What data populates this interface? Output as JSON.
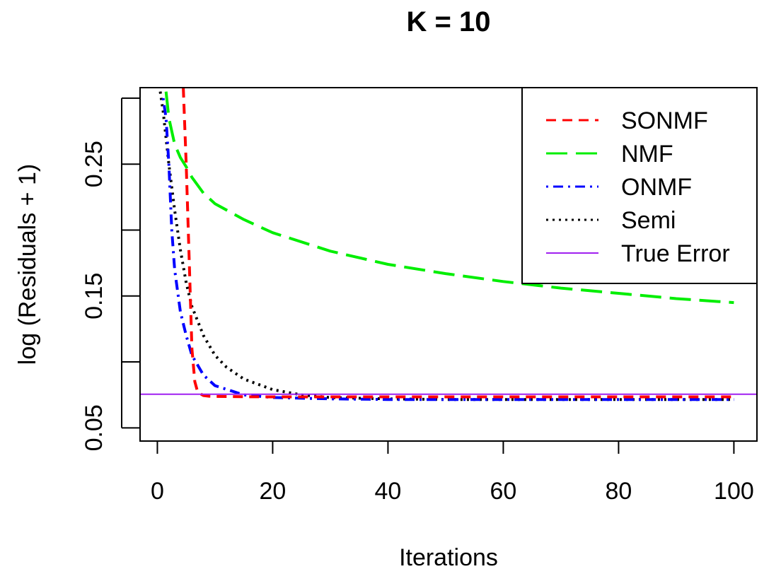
{
  "chart_data": {
    "type": "line",
    "title": "K = 10",
    "xlabel": "Iterations",
    "ylabel": "log (Residuals + 1)",
    "xlim": [
      -3,
      104
    ],
    "ylim": [
      0.04,
      0.308
    ],
    "x_ticks": [
      0,
      20,
      40,
      60,
      80,
      100
    ],
    "x_tick_labels": [
      "0",
      "20",
      "40",
      "60",
      "80",
      "100"
    ],
    "y_ticks": [
      0.05,
      0.1,
      0.15,
      0.2,
      0.25,
      0.3
    ],
    "y_tick_labels": [
      "0.05",
      "",
      "0.15",
      "",
      "0.25",
      ""
    ],
    "legend_position": "top-right",
    "series": [
      {
        "name": "SONMF",
        "color": "#ff0000",
        "dash": "dashed",
        "x": [
          4.5,
          5,
          5.5,
          6,
          6.5,
          7,
          8,
          9,
          10,
          15,
          20,
          30,
          40,
          50,
          60,
          70,
          80,
          90,
          100
        ],
        "y": [
          0.31,
          0.25,
          0.18,
          0.11,
          0.085,
          0.077,
          0.0745,
          0.074,
          0.0738,
          0.0736,
          0.0735,
          0.0735,
          0.0735,
          0.0735,
          0.0735,
          0.0735,
          0.0735,
          0.0735,
          0.0735
        ]
      },
      {
        "name": "NMF",
        "color": "#00ee00",
        "dash": "longdash",
        "x": [
          1.5,
          2,
          3,
          4,
          5,
          6,
          8,
          10,
          15,
          20,
          30,
          40,
          50,
          60,
          70,
          80,
          90,
          100
        ],
        "y": [
          0.305,
          0.285,
          0.265,
          0.255,
          0.248,
          0.24,
          0.228,
          0.22,
          0.208,
          0.198,
          0.184,
          0.174,
          0.167,
          0.161,
          0.156,
          0.152,
          0.148,
          0.145
        ]
      },
      {
        "name": "ONMF",
        "color": "#0000ff",
        "dash": "dotdash",
        "x": [
          1,
          1.5,
          2,
          2.5,
          3,
          4,
          5,
          6,
          8,
          10,
          15,
          20,
          30,
          40,
          50,
          60,
          70,
          80,
          90,
          100
        ],
        "y": [
          0.3,
          0.285,
          0.25,
          0.2,
          0.17,
          0.138,
          0.12,
          0.105,
          0.09,
          0.082,
          0.075,
          0.073,
          0.072,
          0.0715,
          0.0715,
          0.0715,
          0.0715,
          0.0715,
          0.0715,
          0.0715
        ]
      },
      {
        "name": "Semi",
        "color": "#000000",
        "dash": "dotted",
        "x": [
          0.5,
          1,
          2,
          3,
          4,
          5,
          6,
          8,
          10,
          12,
          15,
          20,
          25,
          30,
          40,
          50,
          60,
          70,
          80,
          90,
          100
        ],
        "y": [
          0.305,
          0.29,
          0.25,
          0.215,
          0.185,
          0.16,
          0.142,
          0.12,
          0.105,
          0.096,
          0.087,
          0.079,
          0.075,
          0.073,
          0.072,
          0.0715,
          0.0715,
          0.0715,
          0.0715,
          0.0715,
          0.0715
        ]
      },
      {
        "name": "True Error",
        "color": "#a020f0",
        "dash": "solid",
        "hline": 0.0755
      }
    ]
  }
}
